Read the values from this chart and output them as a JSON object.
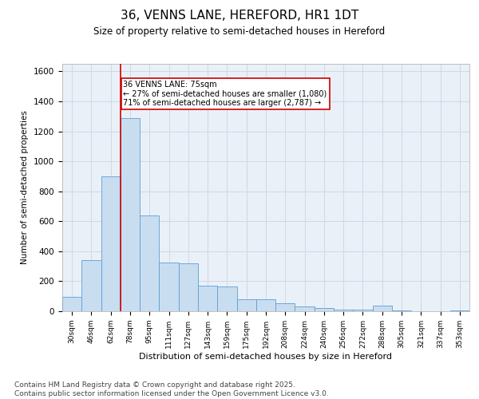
{
  "title": "36, VENNS LANE, HEREFORD, HR1 1DT",
  "subtitle": "Size of property relative to semi-detached houses in Hereford",
  "xlabel": "Distribution of semi-detached houses by size in Hereford",
  "ylabel": "Number of semi-detached properties",
  "categories": [
    "30sqm",
    "46sqm",
    "62sqm",
    "78sqm",
    "95sqm",
    "111sqm",
    "127sqm",
    "143sqm",
    "159sqm",
    "175sqm",
    "192sqm",
    "208sqm",
    "224sqm",
    "240sqm",
    "256sqm",
    "272sqm",
    "288sqm",
    "305sqm",
    "321sqm",
    "337sqm",
    "353sqm"
  ],
  "values": [
    95,
    340,
    900,
    1290,
    640,
    325,
    320,
    170,
    165,
    80,
    80,
    55,
    30,
    20,
    10,
    10,
    35,
    5,
    0,
    0,
    5
  ],
  "bar_color": "#c9ddf0",
  "bar_edge_color": "#5a9fd4",
  "vline_color": "#cc0000",
  "annotation_title": "36 VENNS LANE: 75sqm",
  "annotation_line1": "← 27% of semi-detached houses are smaller (1,080)",
  "annotation_line2": "71% of semi-detached houses are larger (2,787) →",
  "annotation_box_color": "#cc0000",
  "ylim": [
    0,
    1650
  ],
  "yticks": [
    0,
    200,
    400,
    600,
    800,
    1000,
    1200,
    1400,
    1600
  ],
  "grid_color": "#d0d8e8",
  "bg_color": "#eaf0f8",
  "footer_line1": "Contains HM Land Registry data © Crown copyright and database right 2025.",
  "footer_line2": "Contains public sector information licensed under the Open Government Licence v3.0.",
  "title_fontsize": 11,
  "subtitle_fontsize": 8.5,
  "annotation_fontsize": 7,
  "footer_fontsize": 6.5,
  "ylabel_fontsize": 7.5,
  "xlabel_fontsize": 8,
  "ytick_fontsize": 7.5,
  "xtick_fontsize": 6.5
}
